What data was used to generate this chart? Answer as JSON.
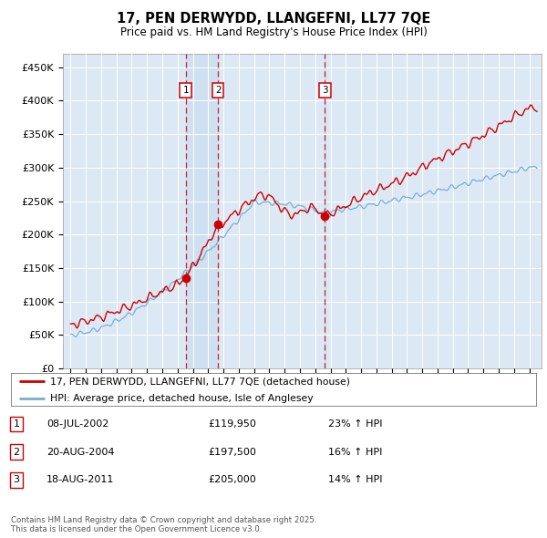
{
  "title": "17, PEN DERWYDD, LLANGEFNI, LL77 7QE",
  "subtitle": "Price paid vs. HM Land Registry's House Price Index (HPI)",
  "ylabel_ticks": [
    "£0",
    "£50K",
    "£100K",
    "£150K",
    "£200K",
    "£250K",
    "£300K",
    "£350K",
    "£400K",
    "£450K"
  ],
  "ylim": [
    0,
    470000
  ],
  "ytick_vals": [
    0,
    50000,
    100000,
    150000,
    200000,
    250000,
    300000,
    350000,
    400000,
    450000
  ],
  "year_start": 1995,
  "year_end": 2025,
  "background_color": "#dce9f5",
  "plot_bg_color": "#dce9f5",
  "red_color": "#cc0000",
  "blue_color": "#7aadd4",
  "shade_color": "#c5d8ee",
  "transaction_markers": [
    {
      "label": "1",
      "date_year": 2002.53,
      "price": 119950
    },
    {
      "label": "2",
      "date_year": 2004.64,
      "price": 197500
    },
    {
      "label": "3",
      "date_year": 2011.63,
      "price": 205000
    }
  ],
  "table_rows": [
    {
      "num": "1",
      "date": "08-JUL-2002",
      "price": "£119,950",
      "change": "23% ↑ HPI"
    },
    {
      "num": "2",
      "date": "20-AUG-2004",
      "price": "£197,500",
      "change": "16% ↑ HPI"
    },
    {
      "num": "3",
      "date": "18-AUG-2011",
      "price": "£205,000",
      "change": "14% ↑ HPI"
    }
  ],
  "legend_line1": "17, PEN DERWYDD, LLANGEFNI, LL77 7QE (detached house)",
  "legend_line2": "HPI: Average price, detached house, Isle of Anglesey",
  "footnote": "Contains HM Land Registry data © Crown copyright and database right 2025.\nThis data is licensed under the Open Government Licence v3.0."
}
